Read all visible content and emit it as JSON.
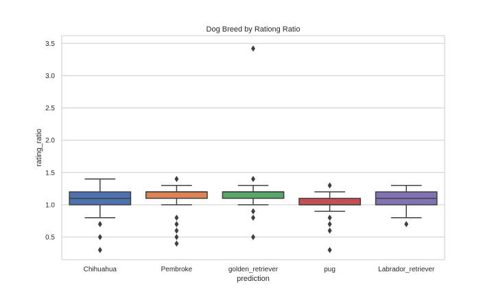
{
  "chart_data": {
    "type": "box",
    "title": "Dog Breed by Rationg Ratio",
    "xlabel": "prediction",
    "ylabel": "rating_ratio",
    "ylim": [
      0.15,
      3.62
    ],
    "yticks": [
      0.5,
      1.0,
      1.5,
      2.0,
      2.5,
      3.0,
      3.5
    ],
    "ytick_labels": [
      "0.5",
      "1.0",
      "1.5",
      "2.0",
      "2.5",
      "3.0",
      "3.5"
    ],
    "grid": "horizontal",
    "categories": [
      "Chihuahua",
      "Pembroke",
      "golden_retriever",
      "pug",
      "Labrador_retriever"
    ],
    "boxes": [
      {
        "category": "Chihuahua",
        "whisker_low": 0.8,
        "q1": 1.0,
        "median": 1.1,
        "q3": 1.2,
        "whisker_high": 1.4,
        "outliers": [
          0.7,
          0.5,
          0.3
        ],
        "color": "#4c72b0"
      },
      {
        "category": "Pembroke",
        "whisker_low": 1.0,
        "q1": 1.1,
        "median": 1.2,
        "q3": 1.2,
        "whisker_high": 1.3,
        "outliers": [
          1.4,
          0.8,
          0.7,
          0.6,
          0.5,
          0.4
        ],
        "color": "#dd8452"
      },
      {
        "category": "golden_retriever",
        "whisker_low": 1.0,
        "q1": 1.1,
        "median": 1.2,
        "q3": 1.2,
        "whisker_high": 1.3,
        "outliers": [
          3.42,
          1.4,
          0.9,
          0.8,
          0.5
        ],
        "color": "#55a868"
      },
      {
        "category": "pug",
        "whisker_low": 0.9,
        "q1": 1.0,
        "median": 1.0,
        "q3": 1.1,
        "whisker_high": 1.2,
        "outliers": [
          1.3,
          0.8,
          0.7,
          0.6,
          0.3
        ],
        "color": "#c44e52"
      },
      {
        "category": "Labrador_retriever",
        "whisker_low": 0.8,
        "q1": 1.0,
        "median": 1.1,
        "q3": 1.2,
        "whisker_high": 1.3,
        "outliers": [
          0.7
        ],
        "color": "#8172b3"
      }
    ],
    "line_color": "#3f3f3f",
    "grid_color": "#cccccc",
    "frame_color": "#cccccc"
  }
}
